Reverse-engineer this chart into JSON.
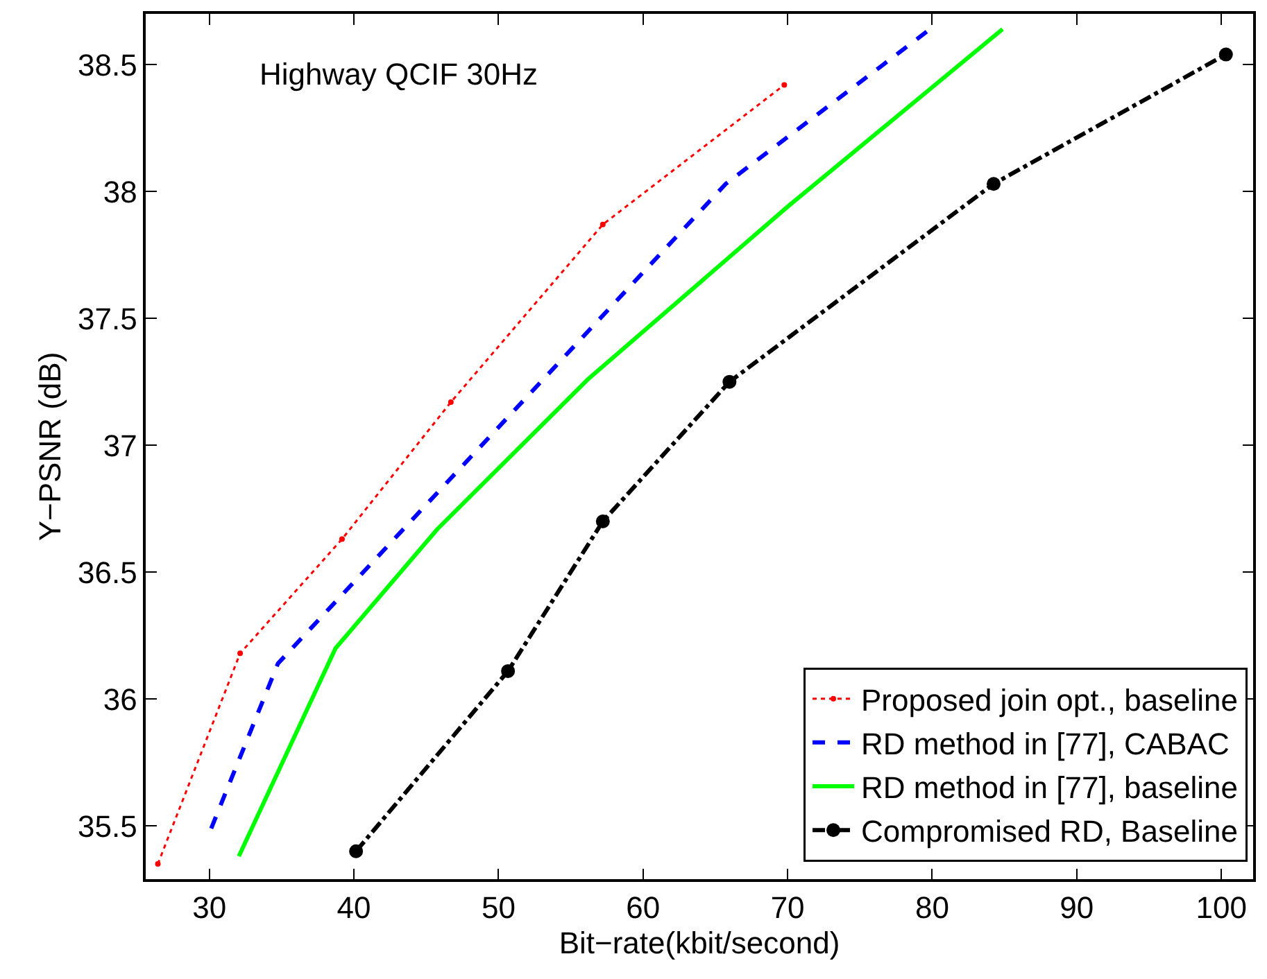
{
  "chart_data": {
    "type": "line",
    "xlabel": "Bit−rate(kbit/second)",
    "ylabel": "Y−PSNR (dB)",
    "annotations": [
      "Highway QCIF 30Hz"
    ],
    "xlim": [
      25.6,
      102.2
    ],
    "xticks": [
      30,
      40,
      50,
      60,
      70,
      80,
      90,
      100
    ],
    "ylim": [
      35.29,
      38.7
    ],
    "yticks": [
      35.5,
      36,
      36.5,
      37,
      37.5,
      38,
      38.5
    ],
    "grid": false,
    "legend": "bottom right",
    "series": [
      {
        "name": "Proposed join opt., baseline",
        "color": "#ff0000",
        "line_style": "dotted",
        "marker": "circle",
        "x": [
          26.44,
          32.13,
          39.18,
          46.71,
          57.22,
          69.77
        ],
        "values": [
          35.35,
          36.18,
          36.63,
          37.17,
          37.87,
          38.42
        ]
      },
      {
        "name": "RD method in [77], CABAC",
        "color": "#0000ff",
        "line_style": "dashed",
        "marker": "none",
        "x": [
          30.13,
          34.75,
          65.72,
          79.86
        ],
        "values": [
          35.49,
          36.14,
          38.03,
          38.64
        ]
      },
      {
        "name": "RD method in [77], baseline",
        "color": "#00ff00",
        "line_style": "solid",
        "marker": "none",
        "x": [
          32.04,
          38.73,
          45.78,
          56.19,
          70.0,
          84.87
        ],
        "values": [
          35.38,
          36.2,
          36.67,
          37.26,
          37.94,
          38.64
        ]
      },
      {
        "name": "Compromised RD, Baseline",
        "color": "#000000",
        "line_style": "dashdot",
        "marker": "circle",
        "x": [
          40.15,
          50.66,
          57.22,
          65.98,
          84.25,
          100.32
        ],
        "values": [
          35.4,
          36.11,
          36.7,
          37.25,
          38.03,
          38.54
        ]
      }
    ]
  }
}
